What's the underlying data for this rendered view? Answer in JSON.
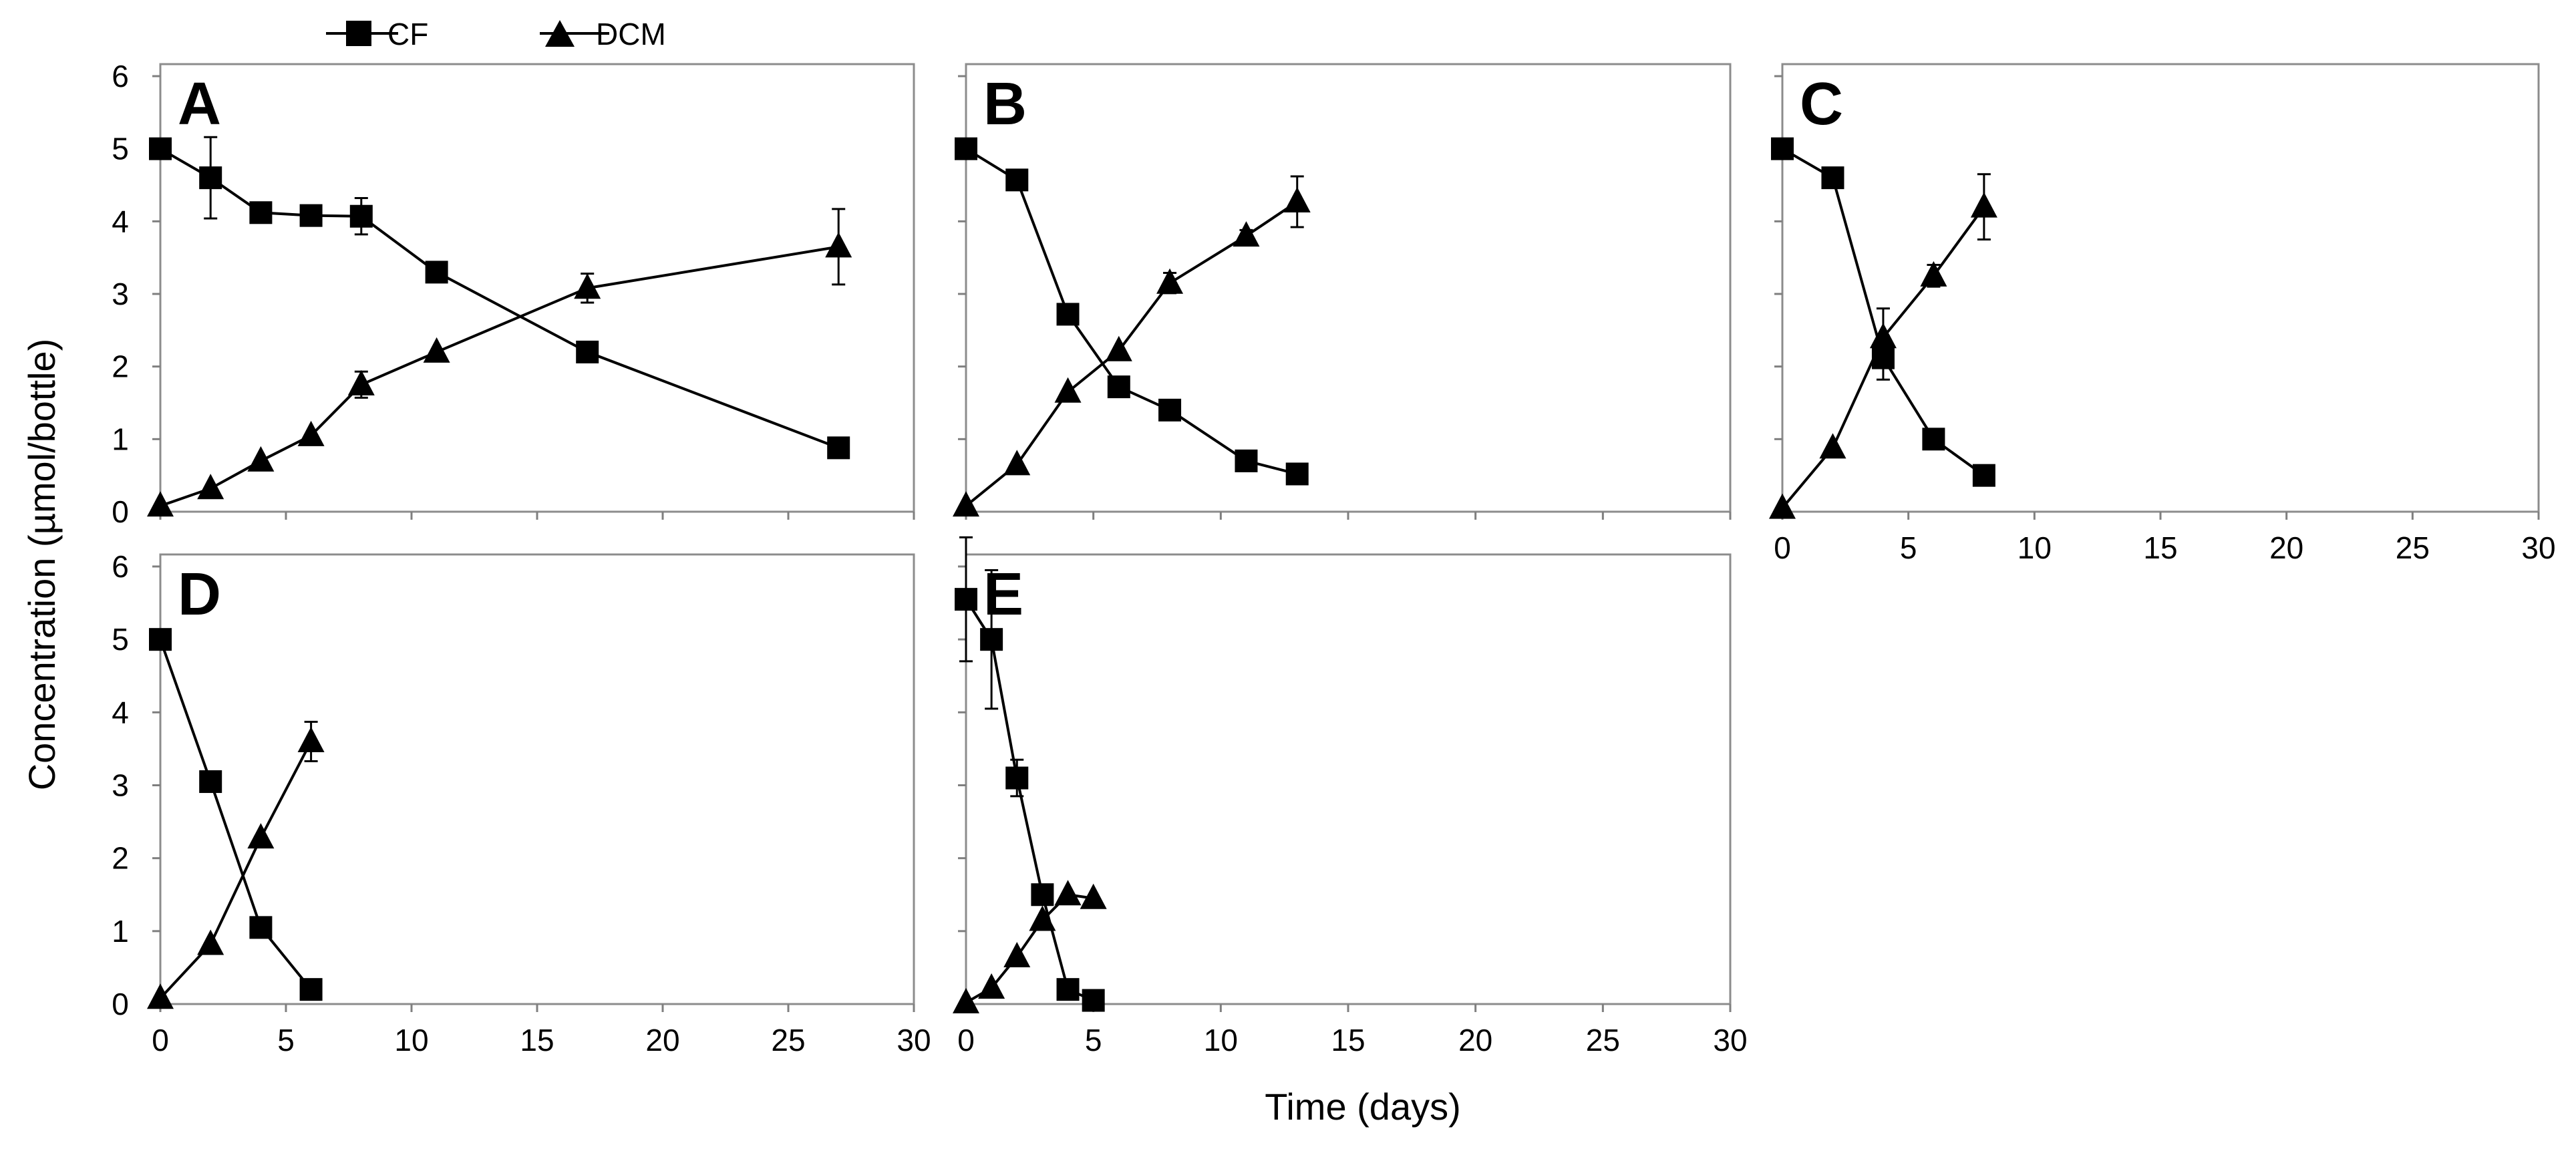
{
  "chart_data": {
    "type": "line",
    "xlabel": "Time (days)",
    "ylabel": "Concentration (µmol/bottle)",
    "xlim": [
      0,
      30
    ],
    "ylim": [
      0,
      6
    ],
    "x_ticks": [
      0,
      5,
      10,
      15,
      20,
      25,
      30
    ],
    "y_ticks": [
      0,
      1,
      2,
      3,
      4,
      5,
      6
    ],
    "legend": [
      {
        "name": "CF",
        "marker": "square"
      },
      {
        "name": "DCM",
        "marker": "triangle"
      }
    ],
    "colors": {
      "line": "#000000",
      "frame": "#8c8c8c",
      "tick": "#7f7f7f"
    },
    "panels": [
      {
        "label": "A",
        "series": [
          {
            "name": "CF",
            "marker": "square",
            "x": [
              0,
              2,
              4,
              6,
              8,
              11,
              17,
              27
            ],
            "y": [
              5.0,
              4.6,
              4.12,
              4.08,
              4.07,
              3.3,
              2.2,
              0.88
            ],
            "err": [
              0,
              0.56,
              0.1,
              0,
              0.25,
              0,
              0,
              0.08
            ]
          },
          {
            "name": "DCM",
            "marker": "triangle",
            "x": [
              0,
              2,
              4,
              6,
              8,
              11,
              17,
              27
            ],
            "y": [
              0.08,
              0.32,
              0.7,
              1.05,
              1.75,
              2.2,
              3.08,
              3.65
            ],
            "err": [
              0,
              0,
              0,
              0,
              0.18,
              0,
              0.2,
              0.52
            ]
          }
        ]
      },
      {
        "label": "B",
        "series": [
          {
            "name": "CF",
            "marker": "square",
            "x": [
              0,
              2,
              4,
              6,
              8,
              11,
              13
            ],
            "y": [
              5.0,
              4.57,
              2.72,
              1.72,
              1.4,
              0.7,
              0.52
            ],
            "err": [
              0,
              0,
              0,
              0,
              0,
              0,
              0
            ]
          },
          {
            "name": "DCM",
            "marker": "triangle",
            "x": [
              0,
              2,
              4,
              6,
              8,
              11,
              13
            ],
            "y": [
              0.08,
              0.65,
              1.65,
              2.22,
              3.15,
              3.8,
              4.27
            ],
            "err": [
              0,
              0,
              0,
              0,
              0.14,
              0.08,
              0.35
            ]
          }
        ]
      },
      {
        "label": "C",
        "series": [
          {
            "name": "CF",
            "marker": "square",
            "x": [
              0,
              2,
              4,
              6,
              8
            ],
            "y": [
              5.0,
              4.6,
              2.12,
              1.0,
              0.5
            ],
            "err": [
              0,
              0,
              0.3,
              0,
              0
            ]
          },
          {
            "name": "DCM",
            "marker": "triangle",
            "x": [
              0,
              2,
              4,
              6,
              8
            ],
            "y": [
              0.05,
              0.88,
              2.4,
              3.25,
              4.2
            ],
            "err": [
              0,
              0,
              0.4,
              0.15,
              0.45
            ]
          }
        ]
      },
      {
        "label": "D",
        "series": [
          {
            "name": "CF",
            "marker": "square",
            "x": [
              0,
              2,
              4,
              6
            ],
            "y": [
              5.0,
              3.05,
              1.05,
              0.2
            ],
            "err": [
              0,
              0,
              0,
              0
            ]
          },
          {
            "name": "DCM",
            "marker": "triangle",
            "x": [
              0,
              2,
              4,
              6
            ],
            "y": [
              0.08,
              0.82,
              2.28,
              3.6
            ],
            "err": [
              0,
              0,
              0,
              0.27
            ]
          }
        ]
      },
      {
        "label": "E",
        "series": [
          {
            "name": "CF",
            "marker": "square",
            "x": [
              0,
              1,
              2,
              3,
              4,
              5
            ],
            "y": [
              5.55,
              5.0,
              3.1,
              1.5,
              0.2,
              0.05
            ],
            "err": [
              0.85,
              0.95,
              0.25,
              0,
              0,
              0
            ]
          },
          {
            "name": "DCM",
            "marker": "triangle",
            "x": [
              0,
              1,
              2,
              3,
              4,
              5
            ],
            "y": [
              0.02,
              0.22,
              0.65,
              1.15,
              1.5,
              1.45
            ],
            "err": [
              0,
              0,
              0,
              0,
              0,
              0
            ]
          }
        ]
      }
    ]
  }
}
